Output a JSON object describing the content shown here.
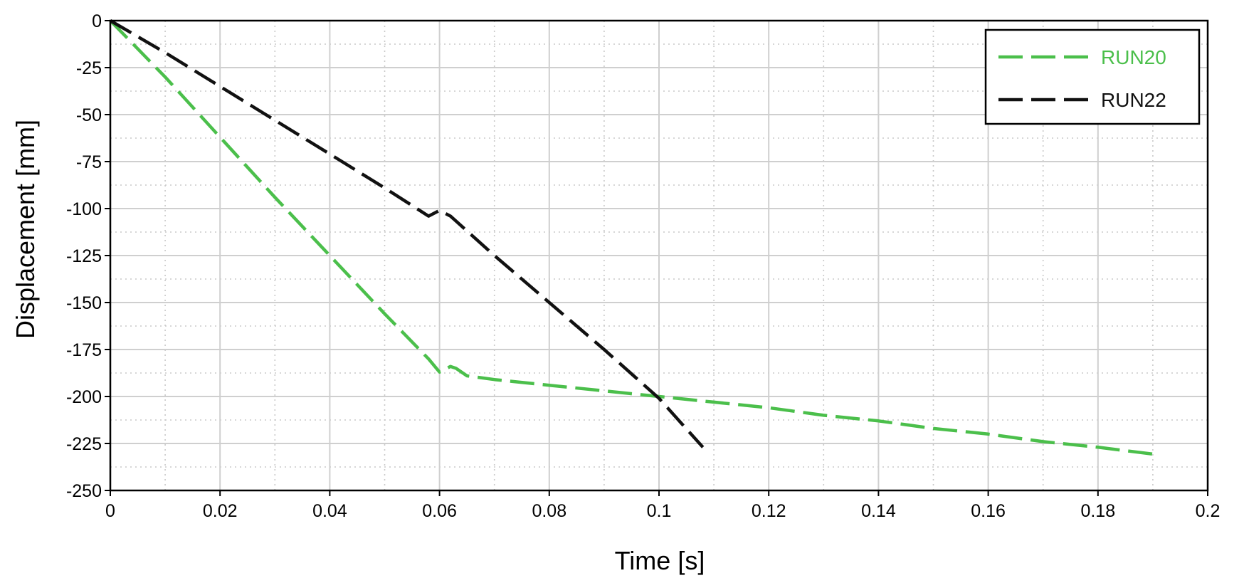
{
  "chart_data": {
    "type": "line",
    "title": "",
    "xlabel": "Time [s]",
    "ylabel": "Displacement [mm]",
    "xlim": [
      0,
      0.2
    ],
    "ylim": [
      -250,
      0
    ],
    "x_ticks": [
      0,
      0.02,
      0.04,
      0.06,
      0.08,
      0.1,
      0.12,
      0.14,
      0.16,
      0.18,
      0.2
    ],
    "x_tick_labels": [
      "0",
      "0.02",
      "0.04",
      "0.06",
      "0.08",
      "0.1",
      "0.12",
      "0.14",
      "0.16",
      "0.18",
      "0.2"
    ],
    "y_ticks": [
      0,
      -25,
      -50,
      -75,
      -100,
      -125,
      -150,
      -175,
      -200,
      -225,
      -250
    ],
    "y_tick_labels": [
      "0",
      "-25",
      "-50",
      "-75",
      "-100",
      "-125",
      "-150",
      "-175",
      "-200",
      "-225",
      "-250"
    ],
    "x_minor_step": 0.01,
    "y_minor_step": 12.5,
    "grid": true,
    "legend_position": "top-right",
    "series": [
      {
        "name": "RUN20",
        "color": "#4bbf4b",
        "dash": "long-dash",
        "x": [
          0,
          0.01,
          0.02,
          0.03,
          0.04,
          0.05,
          0.058,
          0.06,
          0.062,
          0.063,
          0.065,
          0.07,
          0.08,
          0.09,
          0.1,
          0.11,
          0.12,
          0.13,
          0.14,
          0.15,
          0.16,
          0.17,
          0.18,
          0.191
        ],
        "y": [
          0,
          -30,
          -62,
          -94,
          -125,
          -156,
          -180,
          -187,
          -184,
          -185,
          -189,
          -191,
          -194,
          -197,
          -200,
          -203,
          -206,
          -210,
          -213,
          -217,
          -220,
          -224,
          -227,
          -231
        ]
      },
      {
        "name": "RUN22",
        "color": "#111111",
        "dash": "long-dash",
        "x": [
          0,
          0.01,
          0.02,
          0.03,
          0.04,
          0.05,
          0.058,
          0.06,
          0.062,
          0.07,
          0.08,
          0.09,
          0.1,
          0.108
        ],
        "y": [
          0,
          -17,
          -35,
          -53,
          -71,
          -89,
          -104,
          -101,
          -104,
          -125,
          -150,
          -175,
          -201,
          -227
        ]
      }
    ]
  }
}
